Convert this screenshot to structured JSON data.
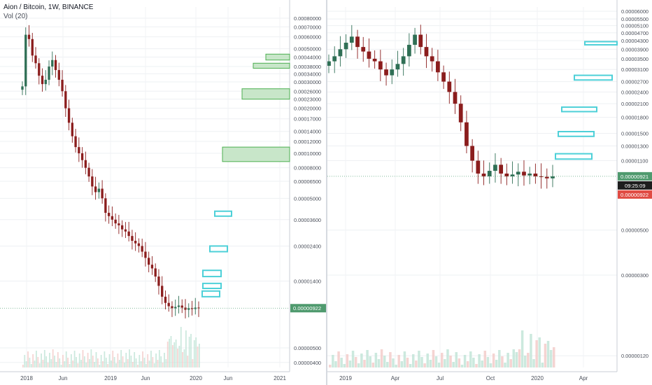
{
  "header": {
    "title": "Aion / Bitcoin, 1W, BINANCE",
    "volume_label": "Vol (20)"
  },
  "colors": {
    "up": "#26a69a",
    "down": "#ef5350",
    "candle_down": "#8b1d1d",
    "candle_up": "#2f6f55",
    "green_zone": "#4caf50",
    "cyan_zone": "#4dd0d8",
    "price_badge": "#4f9a6e",
    "timer_badge": "#1d1d1d",
    "red_badge": "#e04b43"
  },
  "chart_data": [
    {
      "type": "candlestick",
      "title": "Aion / Bitcoin, 1W, BINANCE",
      "scale": "log",
      "y_axis_labels": [
        "0.00080000",
        "0.00070000",
        "0.00060000",
        "0.00050000",
        "0.00044000",
        "0.00038000",
        "0.00034000",
        "0.00030000",
        "0.00026000",
        "0.00023000",
        "0.00020000",
        "0.00017000",
        "0.00014000",
        "0.00012000",
        "0.00010000",
        "0.00008000",
        "0.00006500",
        "0.00005000",
        "0.00003600",
        "0.00002400",
        "0.00001400",
        "0.00000922",
        "0.00000400",
        "0.00000500"
      ],
      "x_axis_labels": [
        "2018",
        "Jun",
        "2019",
        "Jun",
        "2020",
        "Jun",
        "2021"
      ],
      "current_price": "0.00000922",
      "close_series": [
        0.00028,
        0.00062,
        0.00058,
        0.00045,
        0.0004,
        0.00033,
        0.00029,
        0.00031,
        0.00038,
        0.00042,
        0.00036,
        0.00031,
        0.00026,
        0.0002,
        0.00016,
        0.00013,
        0.00011,
        0.0001,
        9e-05,
        8e-05,
        7e-05,
        6e-05,
        5.5e-05,
        5.8e-05,
        5e-05,
        4e-05,
        3.8e-05,
        3.6e-05,
        3.4e-05,
        3.3e-05,
        3.1e-05,
        3e-05,
        2.8e-05,
        2.6e-05,
        2.5e-05,
        2.4e-05,
        2.2e-05,
        2e-05,
        1.8e-05,
        1.7e-05,
        1.5e-05,
        1.3e-05,
        1.1e-05,
        1e-05,
        9.5e-06,
        9.2e-06,
        9.4e-06,
        9.6e-06,
        9.3e-06,
        9e-06,
        9.2e-06,
        9.1e-06,
        9.3e-06,
        9.2e-06
      ],
      "zones": [
        {
          "kind": "green",
          "y_low": 0.00042,
          "y_high": 0.00046,
          "x_start_date": "2020-10",
          "x_end_date": "2021-01"
        },
        {
          "kind": "green",
          "y_low": 0.00037,
          "y_high": 0.0004,
          "x_start_date": "2020-09",
          "x_end_date": "2021-01"
        },
        {
          "kind": "green",
          "y_low": 0.00023,
          "y_high": 0.00027,
          "x_start_date": "2020-08",
          "x_end_date": "2021-01"
        },
        {
          "kind": "green",
          "y_low": 8.8e-05,
          "y_high": 0.00011,
          "x_start_date": "2020-05",
          "x_end_date": "2021-01"
        },
        {
          "kind": "cyan",
          "y_low": 3.8e-05,
          "y_high": 4.1e-05,
          "x_start_date": "2020-04",
          "x_end_date": "2020-06"
        },
        {
          "kind": "cyan",
          "y_low": 2.2e-05,
          "y_high": 2.4e-05,
          "x_start_date": "2020-03",
          "x_end_date": "2020-05"
        },
        {
          "kind": "cyan",
          "y_low": 1.5e-05,
          "y_high": 1.65e-05,
          "x_start_date": "2020-02",
          "x_end_date": "2020-05"
        },
        {
          "kind": "cyan",
          "y_low": 1.25e-05,
          "y_high": 1.35e-05,
          "x_start_date": "2020-02",
          "x_end_date": "2020-05"
        },
        {
          "kind": "cyan",
          "y_low": 1.1e-05,
          "y_high": 1.2e-05,
          "x_start_date": "2020-02",
          "x_end_date": "2020-05"
        }
      ]
    },
    {
      "type": "candlestick",
      "scale": "log",
      "y_axis_labels": [
        "0.00006000",
        "0.00005500",
        "0.00005100",
        "0.00004700",
        "0.00004300",
        "0.00003900",
        "0.00003500",
        "0.00003100",
        "0.00002700",
        "0.00002400",
        "0.00002100",
        "0.00001800",
        "0.00001500",
        "0.00001300",
        "0.00001100",
        "0.00000921",
        "0.00000922",
        "0.00000500",
        "0.00000300",
        "0.00000120"
      ],
      "x_axis_labels": [
        "2019",
        "Apr",
        "Jul",
        "Oct",
        "2020",
        "Apr"
      ],
      "current_price": "0.00000921",
      "timer": "09:25:09",
      "red_label": "0.00000922",
      "close_series": [
        3.4e-05,
        3.6e-05,
        3.9e-05,
        4.2e-05,
        4.5e-05,
        4e-05,
        3.8e-05,
        3.5e-05,
        3.4e-05,
        3.1e-05,
        2.9e-05,
        3.1e-05,
        3.3e-05,
        3.6e-05,
        4.1e-05,
        4.6e-05,
        4e-05,
        3.6e-05,
        3.4e-05,
        3e-05,
        2.7e-05,
        2.4e-05,
        2.1e-05,
        1.7e-05,
        1.3e-05,
        1.1e-05,
        9.5e-06,
        9.2e-06,
        9.8e-06,
        1.05e-05,
        9.5e-06,
        9.2e-06,
        9.4e-06,
        9.7e-06,
        9.3e-06,
        9.5e-06,
        9.2e-06,
        9.15e-06,
        9e-06,
        9.2e-06
      ],
      "zones": [
        {
          "kind": "cyan",
          "y_low": 4.1e-05,
          "y_high": 4.25e-05,
          "x_start_date": "2020-05",
          "x_end_date": "2020-08"
        },
        {
          "kind": "cyan",
          "y_low": 2.75e-05,
          "y_high": 2.9e-05,
          "x_start_date": "2020-03",
          "x_end_date": "2020-05"
        },
        {
          "kind": "cyan",
          "y_low": 1.92e-05,
          "y_high": 2.02e-05,
          "x_start_date": "2020-02",
          "x_end_date": "2020-04"
        },
        {
          "kind": "cyan",
          "y_low": 1.45e-05,
          "y_high": 1.53e-05,
          "x_start_date": "2020-02",
          "x_end_date": "2020-04"
        },
        {
          "kind": "cyan",
          "y_low": 1.12e-05,
          "y_high": 1.19e-05,
          "x_start_date": "2020-02",
          "x_end_date": "2020-04"
        }
      ]
    }
  ]
}
